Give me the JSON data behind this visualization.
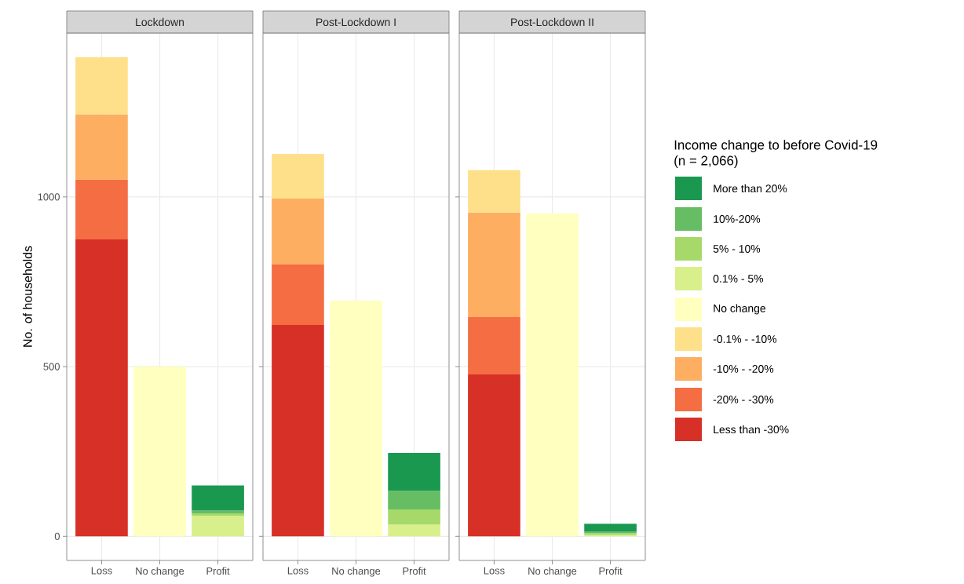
{
  "chart_data": [
    {
      "type": "bar",
      "title": "Lockdown",
      "ylabel": "No. of households",
      "stacked": true,
      "grid": true,
      "categories": [
        "Loss",
        "No change",
        "Profit"
      ],
      "ylim": [
        -71,
        1483
      ],
      "yticks": [
        0,
        500,
        1000
      ],
      "series": [
        {
          "color": "#d73027",
          "values": [
            875,
            null,
            null
          ]
        },
        {
          "color": "#f46d43",
          "values": [
            176,
            null,
            null
          ]
        },
        {
          "color": "#fdae61",
          "values": [
            192,
            null,
            null
          ]
        },
        {
          "color": "#fee08b",
          "values": [
            169,
            null,
            null
          ]
        },
        {
          "color": "#ffffbf",
          "values": [
            null,
            500,
            null
          ]
        },
        {
          "color": "#d9ef8b",
          "values": [
            null,
            null,
            60
          ]
        },
        {
          "color": "#a6d96a",
          "values": [
            null,
            null,
            8
          ]
        },
        {
          "color": "#66bd63",
          "values": [
            null,
            null,
            8
          ]
        },
        {
          "color": "#1a9850",
          "values": [
            null,
            null,
            74
          ]
        }
      ]
    },
    {
      "type": "bar",
      "title": "Post-Lockdown I",
      "stacked": true,
      "grid": true,
      "tick_labels": "x",
      "categories": [
        "Loss",
        "No change",
        "Profit"
      ],
      "ylim": [
        -71,
        1483
      ],
      "yticks": [
        0,
        500,
        1000
      ],
      "series": [
        {
          "color": "#d73027",
          "values": [
            623,
            null,
            null
          ]
        },
        {
          "color": "#f46d43",
          "values": [
            178,
            null,
            null
          ]
        },
        {
          "color": "#fdae61",
          "values": [
            194,
            null,
            null
          ]
        },
        {
          "color": "#fee08b",
          "values": [
            132,
            null,
            null
          ]
        },
        {
          "color": "#ffffbf",
          "values": [
            null,
            695,
            null
          ]
        },
        {
          "color": "#d9ef8b",
          "values": [
            null,
            null,
            35
          ]
        },
        {
          "color": "#a6d96a",
          "values": [
            null,
            null,
            44
          ]
        },
        {
          "color": "#66bd63",
          "values": [
            null,
            null,
            55
          ]
        },
        {
          "color": "#1a9850",
          "values": [
            null,
            null,
            112
          ]
        }
      ]
    },
    {
      "type": "bar",
      "title": "Post-Lockdown II",
      "stacked": true,
      "grid": true,
      "tick_labels": "x",
      "legend": "right",
      "legend_title": "Income change to before Covid-19\n(n = 2,066)",
      "categories": [
        "Loss",
        "No change",
        "Profit"
      ],
      "ylim": [
        -71,
        1483
      ],
      "yticks": [
        0,
        500,
        1000
      ],
      "series": [
        {
          "name": "Less than -30%",
          "color": "#d73027",
          "values": [
            477,
            null,
            null
          ]
        },
        {
          "name": "-20% - -30%",
          "color": "#f46d43",
          "values": [
            169,
            null,
            null
          ]
        },
        {
          "name": "-10% - -20%",
          "color": "#fdae61",
          "values": [
            308,
            null,
            null
          ]
        },
        {
          "name": "-0.1% - -10%",
          "color": "#fee08b",
          "values": [
            125,
            null,
            null
          ]
        },
        {
          "name": "No change",
          "color": "#ffffbf",
          "values": [
            null,
            951,
            null
          ]
        },
        {
          "name": "0.1% - 5%",
          "color": "#d9ef8b",
          "values": [
            null,
            null,
            4
          ]
        },
        {
          "name": "5% - 10%",
          "color": "#a6d96a",
          "values": [
            null,
            null,
            5
          ]
        },
        {
          "name": "10%-20%",
          "color": "#66bd63",
          "values": [
            null,
            null,
            5
          ]
        },
        {
          "name": "More than 20%",
          "color": "#1a9850",
          "values": [
            null,
            null,
            23
          ]
        }
      ]
    }
  ]
}
